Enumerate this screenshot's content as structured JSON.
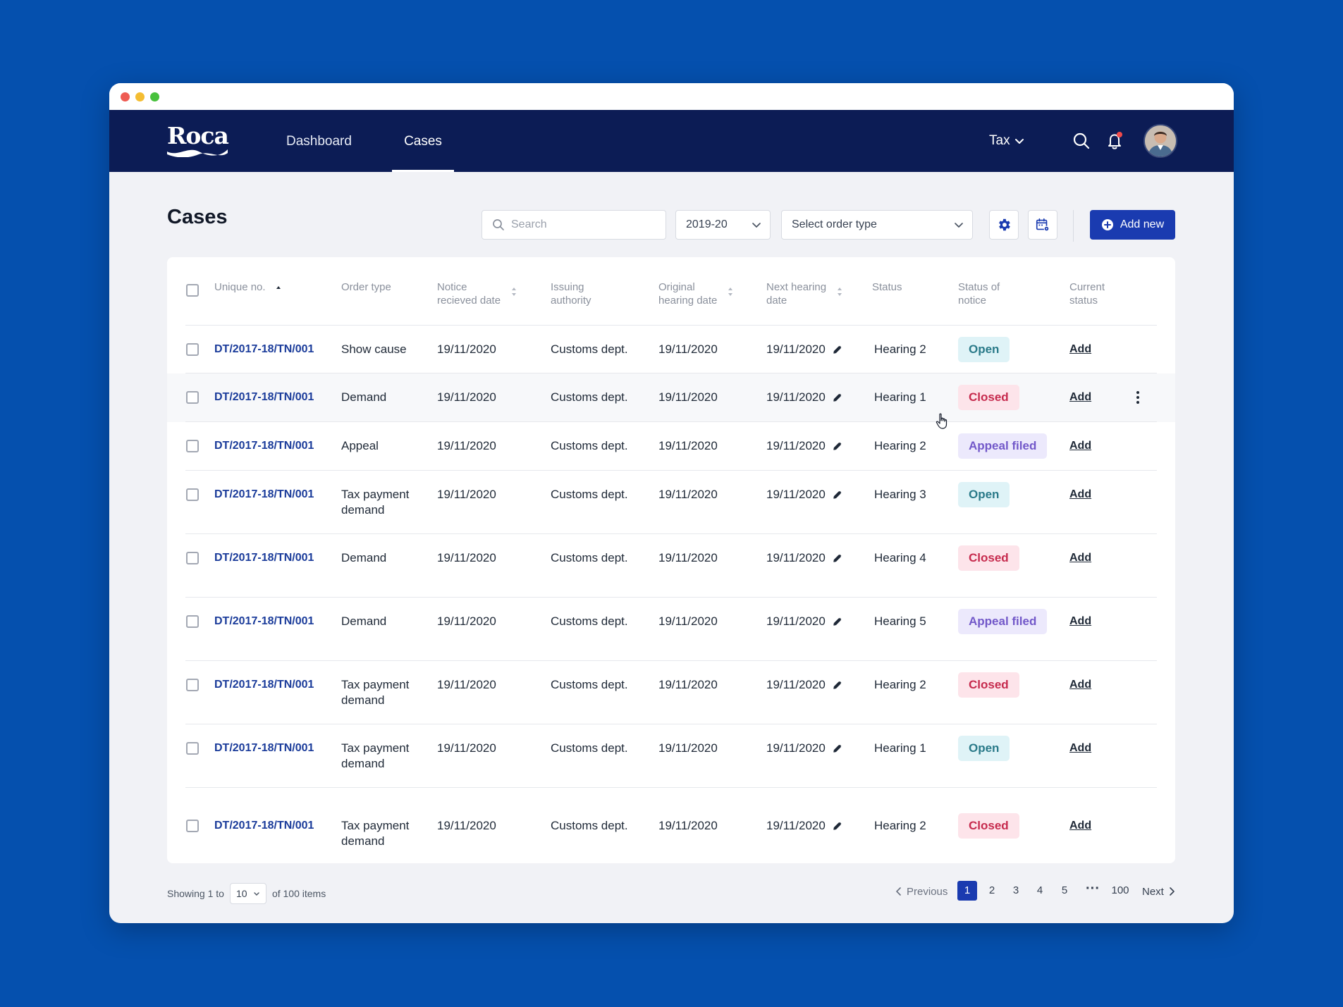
{
  "nav": {
    "logo": "Roca",
    "items": [
      {
        "label": "Dashboard"
      },
      {
        "label": "Cases"
      }
    ],
    "module": "Tax",
    "icons": [
      "search-icon",
      "bell-icon",
      "avatar"
    ]
  },
  "toolbar": {
    "title": "Cases",
    "search_placeholder": "Search",
    "year_value": "2019-20",
    "order_type_placeholder": "Select order type",
    "add_label": "Add new"
  },
  "table": {
    "headers": {
      "unique_no": "Unique no.",
      "order_type": "Order type",
      "notice_date": "Notice\nrecieved date",
      "authority": "Issuing\nauthority",
      "original_date": "Original\nhearing date",
      "next_date": "Next hearing\ndate",
      "status": "Status",
      "status_of_notice": "Status of\nnotice",
      "current_status": "Current\nstatus"
    },
    "rows": [
      {
        "id": "DT/2017-18/TN/001",
        "order": "Show cause",
        "notice": "19/11/2020",
        "authority": "Customs dept.",
        "original": "19/11/2020",
        "next": "19/11/2020",
        "status": "Hearing 2",
        "notice_status": "Open",
        "current": "Add"
      },
      {
        "id": "DT/2017-18/TN/001",
        "order": "Demand",
        "notice": "19/11/2020",
        "authority": "Customs dept.",
        "original": "19/11/2020",
        "next": "19/11/2020",
        "status": "Hearing 1",
        "notice_status": "Closed",
        "current": "Add"
      },
      {
        "id": "DT/2017-18/TN/001",
        "order": "Appeal",
        "notice": "19/11/2020",
        "authority": "Customs dept.",
        "original": "19/11/2020",
        "next": "19/11/2020",
        "status": "Hearing 2",
        "notice_status": "Appeal filed",
        "current": "Add"
      },
      {
        "id": "DT/2017-18/TN/001",
        "order": "Tax payment demand",
        "notice": "19/11/2020",
        "authority": "Customs dept.",
        "original": "19/11/2020",
        "next": "19/11/2020",
        "status": "Hearing 3",
        "notice_status": "Open",
        "current": "Add"
      },
      {
        "id": "DT/2017-18/TN/001",
        "order": "Demand",
        "notice": "19/11/2020",
        "authority": "Customs dept.",
        "original": "19/11/2020",
        "next": "19/11/2020",
        "status": "Hearing 4",
        "notice_status": "Closed",
        "current": "Add"
      },
      {
        "id": "DT/2017-18/TN/001",
        "order": "Demand",
        "notice": "19/11/2020",
        "authority": "Customs dept.",
        "original": "19/11/2020",
        "next": "19/11/2020",
        "status": "Hearing 5",
        "notice_status": "Appeal filed",
        "current": "Add"
      },
      {
        "id": "DT/2017-18/TN/001",
        "order": "Tax payment demand",
        "notice": "19/11/2020",
        "authority": "Customs dept.",
        "original": "19/11/2020",
        "next": "19/11/2020",
        "status": "Hearing 2",
        "notice_status": "Closed",
        "current": "Add"
      },
      {
        "id": "DT/2017-18/TN/001",
        "order": "Tax payment demand",
        "notice": "19/11/2020",
        "authority": "Customs dept.",
        "original": "19/11/2020",
        "next": "19/11/2020",
        "status": "Hearing 1",
        "notice_status": "Open",
        "current": "Add"
      },
      {
        "id": "DT/2017-18/TN/001",
        "order": "Tax payment demand",
        "notice": "19/11/2020",
        "authority": "Customs dept.",
        "original": "19/11/2020",
        "next": "19/11/2020",
        "status": "Hearing 2",
        "notice_status": "Closed",
        "current": "Add"
      }
    ]
  },
  "footer": {
    "showing_prefix": "Showing 1 to",
    "per_page": "10",
    "showing_suffix": "of 100 items",
    "previous": "Previous",
    "pages": [
      "1",
      "2",
      "3",
      "4",
      "5",
      "100"
    ],
    "current_page": "1",
    "next": "Next"
  },
  "colors": {
    "background": "#0550ae",
    "navbar": "#0c1c55",
    "accent": "#1a3bb0",
    "open": "#2a7a89",
    "closed": "#c62a4d",
    "appeal_filed": "#7258c9"
  }
}
